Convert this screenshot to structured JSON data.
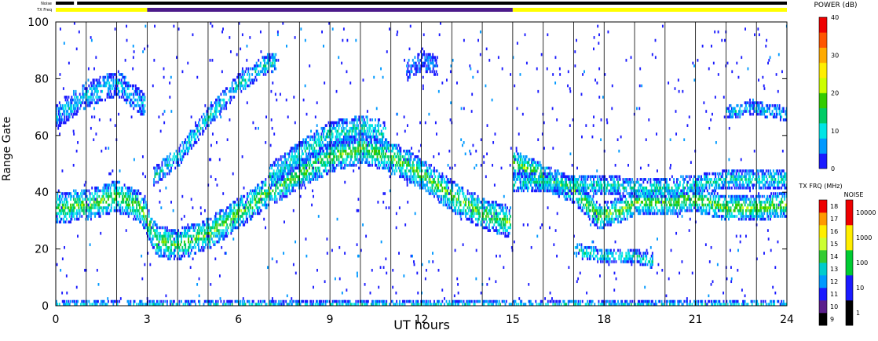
{
  "chart_data": {
    "type": "heatmap",
    "title": "",
    "xlabel": "UT hours",
    "ylabel": "Range Gate",
    "xlim": [
      0,
      24
    ],
    "ylim": [
      0,
      100
    ],
    "x_ticks": [
      "0",
      "3",
      "6",
      "9",
      "12",
      "15",
      "18",
      "21",
      "24"
    ],
    "y_ticks": [
      "0",
      "20",
      "40",
      "60",
      "80",
      "100"
    ],
    "scan_boundaries_ut": [
      1,
      2,
      3,
      4,
      5,
      6,
      7,
      8,
      9,
      10,
      11,
      12,
      13,
      14,
      15,
      16,
      17,
      18,
      19,
      20,
      21,
      22,
      23,
      24
    ],
    "top_bars": {
      "noise_label": "Noise",
      "txfreq_label": "TX Freq",
      "noise_segments": [
        {
          "start": 0,
          "end": 0.6,
          "color": "#000000"
        },
        {
          "start": 0.6,
          "end": 0.7,
          "color": "#ffffff"
        },
        {
          "start": 0.7,
          "end": 24,
          "color": "#000000"
        }
      ],
      "txfreq_segments": [
        {
          "start": 0,
          "end": 3,
          "color": "#ffff00"
        },
        {
          "start": 3,
          "end": 15,
          "color": "#4b1a8a"
        },
        {
          "start": 15,
          "end": 24,
          "color": "#ffff00"
        }
      ]
    },
    "power_colorbar": {
      "title": "POWER (dB)",
      "ticks": [
        "0",
        "10",
        "20",
        "30",
        "40"
      ],
      "range": [
        0,
        40
      ],
      "colors": [
        "#1a1aff",
        "#0099ff",
        "#00e5e5",
        "#00cc66",
        "#33cc00",
        "#ccff00",
        "#ffee00",
        "#ffaa00",
        "#ff5500",
        "#ee0000"
      ]
    },
    "txfreq_colorbar": {
      "title": "TX FRQ (MHz)",
      "ticks": [
        "9",
        "10",
        "11",
        "12",
        "13",
        "14",
        "15",
        "16",
        "17",
        "18"
      ],
      "colors": [
        "#000000",
        "#5a1e8c",
        "#1a1aff",
        "#0099ff",
        "#00cccc",
        "#33cc33",
        "#ccff33",
        "#ffee00",
        "#ff9900",
        "#ee0000"
      ]
    },
    "noise_colorbar": {
      "title": "NOISE",
      "ticks": [
        "1",
        "10",
        "100",
        "1000",
        "10000"
      ],
      "colors": [
        "#000000",
        "#1a1aff",
        "#00cc33",
        "#ffee00",
        "#ee0000"
      ]
    },
    "echo_bands": [
      {
        "t": [
          0,
          1,
          2,
          2.8,
          3.3,
          4,
          5,
          6,
          7,
          8,
          9,
          10,
          11,
          12,
          13,
          14,
          14.9
        ],
        "gate": [
          34,
          35,
          38,
          34,
          22,
          21,
          25,
          32,
          40,
          46,
          52,
          55,
          52,
          46,
          38,
          32,
          29
        ],
        "width": 5,
        "power": 16
      },
      {
        "t": [
          0,
          1,
          2,
          2.9
        ],
        "gate": [
          66,
          74,
          78,
          70
        ],
        "width": 4,
        "power": 8
      },
      {
        "t": [
          3.2,
          4,
          5,
          6,
          6.8,
          7.2
        ],
        "gate": [
          45,
          52,
          66,
          78,
          84,
          86
        ],
        "width": 3,
        "power": 10
      },
      {
        "t": [
          7,
          8,
          9,
          10,
          10.8
        ],
        "gate": [
          45,
          53,
          60,
          62,
          60
        ],
        "width": 4,
        "power": 11
      },
      {
        "t": [
          15,
          16,
          17,
          17.8,
          18.5,
          19,
          20,
          21,
          22,
          23,
          24
        ],
        "gate": [
          50,
          45,
          40,
          31,
          33,
          36,
          36,
          37,
          34,
          34,
          35
        ],
        "width": 4,
        "power": 17
      },
      {
        "t": [
          15,
          16,
          17,
          18,
          19,
          20,
          21,
          22,
          23,
          24
        ],
        "gate": [
          43,
          43,
          42,
          42,
          41,
          41,
          42,
          44,
          44,
          44
        ],
        "width": 3,
        "power": 11
      },
      {
        "t": [
          17,
          18,
          19,
          19.6
        ],
        "gate": [
          19,
          17,
          17,
          15
        ],
        "width": 2,
        "power": 11
      },
      {
        "t": [
          22,
          23,
          24
        ],
        "gate": [
          68,
          69,
          67
        ],
        "width": 2,
        "power": 8
      },
      {
        "t": [
          11.5,
          12,
          12.5
        ],
        "gate": [
          82,
          86,
          84
        ],
        "width": 3,
        "power": 5
      },
      {
        "t": [
          0,
          24
        ],
        "gate": [
          0,
          0
        ],
        "width": 1,
        "power": 8
      }
    ]
  }
}
